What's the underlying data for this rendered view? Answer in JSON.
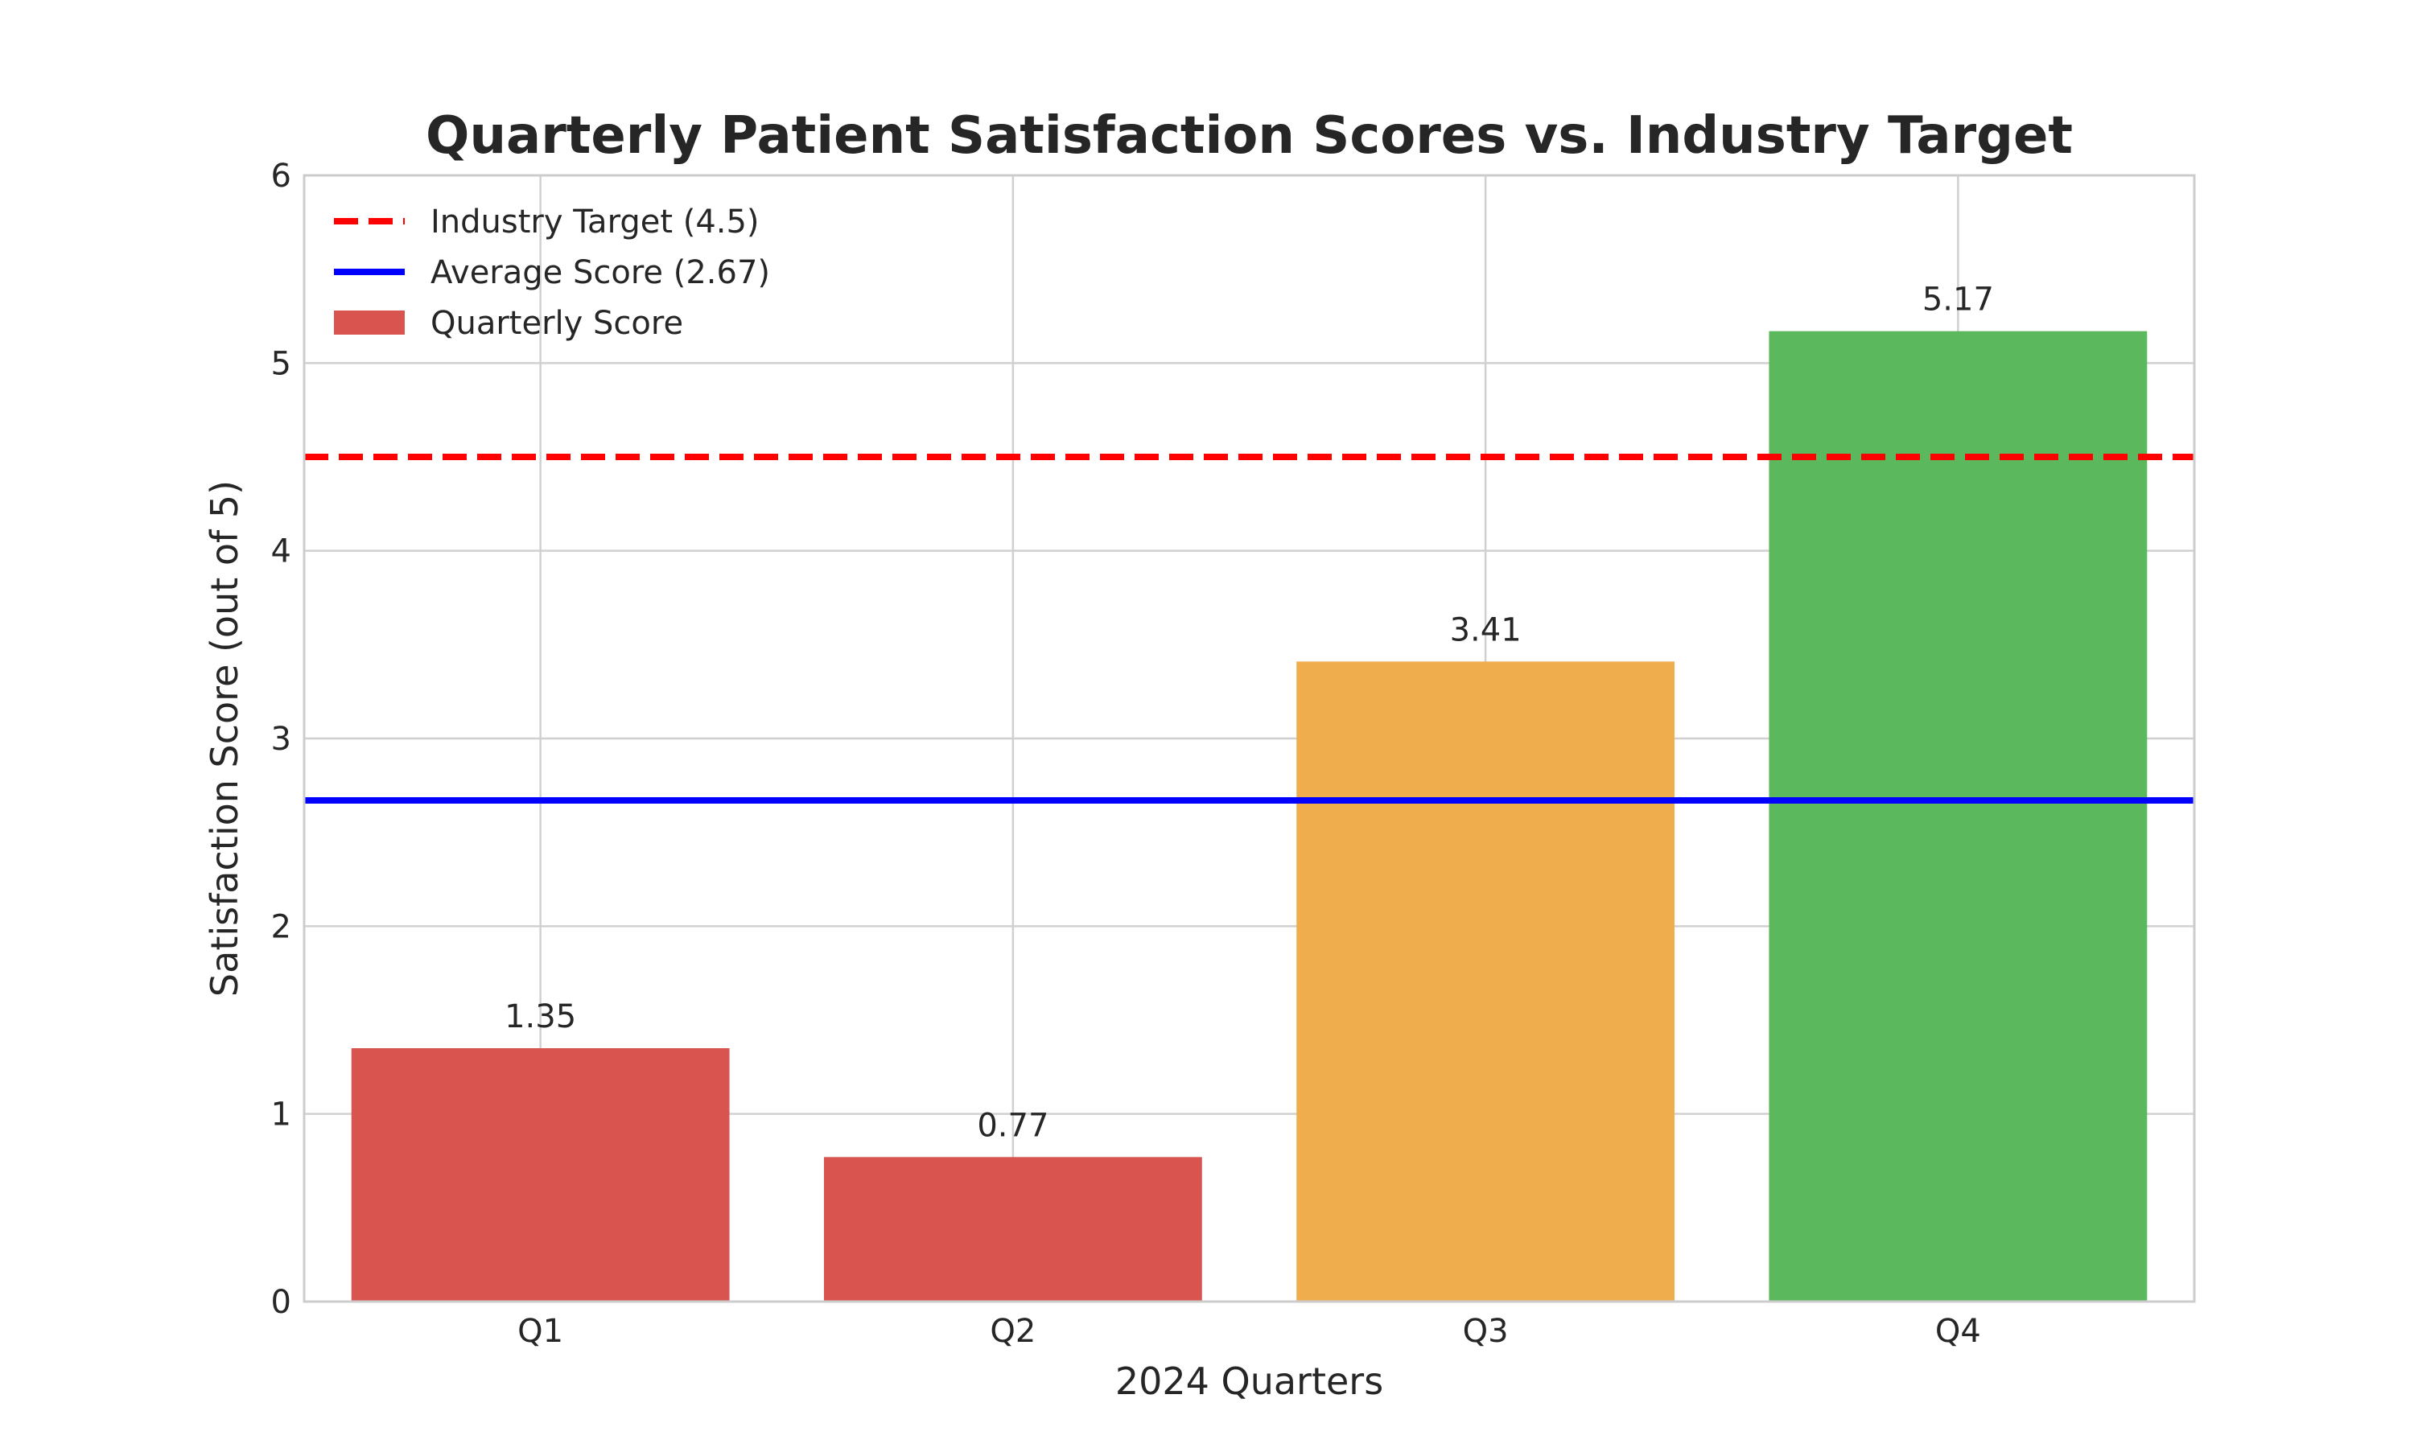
{
  "chart_data": {
    "type": "bar",
    "title": "Quarterly Patient Satisfaction Scores vs. Industry Target",
    "xlabel": "2024 Quarters",
    "ylabel": "Satisfaction Score (out of 5)",
    "categories": [
      "Q1",
      "Q2",
      "Q3",
      "Q4"
    ],
    "values": [
      1.35,
      0.77,
      3.41,
      5.17
    ],
    "value_labels": [
      "1.35",
      "0.77",
      "3.41",
      "5.17"
    ],
    "bar_colors": [
      "#d9534f",
      "#d9534f",
      "#f0ad4e",
      "#5cb85c"
    ],
    "ylim": [
      0,
      6
    ],
    "yticks": [
      0,
      1,
      2,
      3,
      4,
      5,
      6
    ],
    "ytick_labels": [
      "0",
      "1",
      "2",
      "3",
      "4",
      "5",
      "6"
    ],
    "grid": true,
    "legend_placement": "top-left",
    "reference_lines": [
      {
        "name": "Industry Target (4.5)",
        "value": 4.5,
        "color": "#ff0000",
        "style": "dashed"
      },
      {
        "name": "Average Score (2.67)",
        "value": 2.67,
        "color": "#0000ff",
        "style": "solid"
      }
    ],
    "legend": [
      {
        "label": "Industry Target (4.5)",
        "kind": "dashed-line",
        "color": "#ff0000"
      },
      {
        "label": "Average Score (2.67)",
        "kind": "line",
        "color": "#0000ff"
      },
      {
        "label": "Quarterly Score",
        "kind": "patch",
        "color": "#d9534f"
      }
    ]
  }
}
